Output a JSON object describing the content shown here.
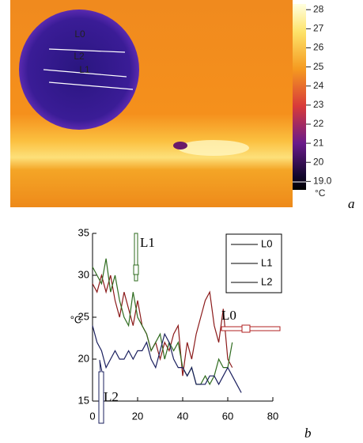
{
  "chart_data": [
    {
      "type": "image",
      "labels": [
        "L0",
        "L2",
        "L1"
      ],
      "colorbar_lim": [
        18.6,
        28.3
      ],
      "colorbar_ticks": [
        28,
        27,
        26,
        25,
        24,
        23,
        22,
        21,
        20,
        {
          "value": 19,
          "label": "19.0"
        }
      ],
      "unit": "°C",
      "panel": "a"
    },
    {
      "type": "line",
      "ylabel": "°C",
      "panel": "b",
      "x": [
        0,
        2,
        4,
        6,
        8,
        10,
        12,
        14,
        16,
        18,
        20,
        22,
        24,
        26,
        28,
        30,
        32,
        34,
        36,
        38,
        40,
        42,
        44,
        46,
        48,
        50,
        52,
        54,
        56,
        58,
        60,
        62,
        64,
        66
      ],
      "series": [
        {
          "name": "L0",
          "color": "#8b1a1a",
          "values": [
            29,
            28,
            30,
            28,
            30,
            27,
            25,
            28,
            26,
            24,
            27,
            24,
            23,
            21,
            22,
            20,
            22,
            21,
            23,
            24,
            18,
            22,
            20,
            23,
            25,
            27,
            28,
            24,
            22,
            26,
            20,
            19,
            null,
            null
          ]
        },
        {
          "name": "L1",
          "color": "#2e6b1e",
          "values": [
            31,
            30,
            29,
            32,
            28,
            30,
            27,
            25,
            24,
            28,
            25,
            24,
            23,
            21,
            22,
            23,
            20,
            22,
            21,
            22,
            19,
            18,
            19,
            17,
            17,
            18,
            17,
            18,
            20,
            19,
            19,
            22,
            null,
            null
          ]
        },
        {
          "name": "L2",
          "color": "#1a1f5e",
          "values": [
            24,
            22,
            21,
            19,
            20,
            21,
            20,
            20,
            21,
            20,
            21,
            21,
            22,
            20,
            19,
            21,
            23,
            22,
            20,
            19,
            19,
            18,
            19,
            17,
            17,
            17,
            18,
            18,
            17,
            18,
            19,
            18,
            17,
            16
          ]
        }
      ],
      "xlim": [
        0,
        80
      ],
      "ylim": [
        15,
        35
      ],
      "xticks": [
        0,
        20,
        40,
        60,
        80
      ],
      "yticks": [
        15,
        20,
        25,
        30,
        35
      ],
      "annotations": [
        "L1",
        "L0",
        "L2"
      ]
    }
  ]
}
